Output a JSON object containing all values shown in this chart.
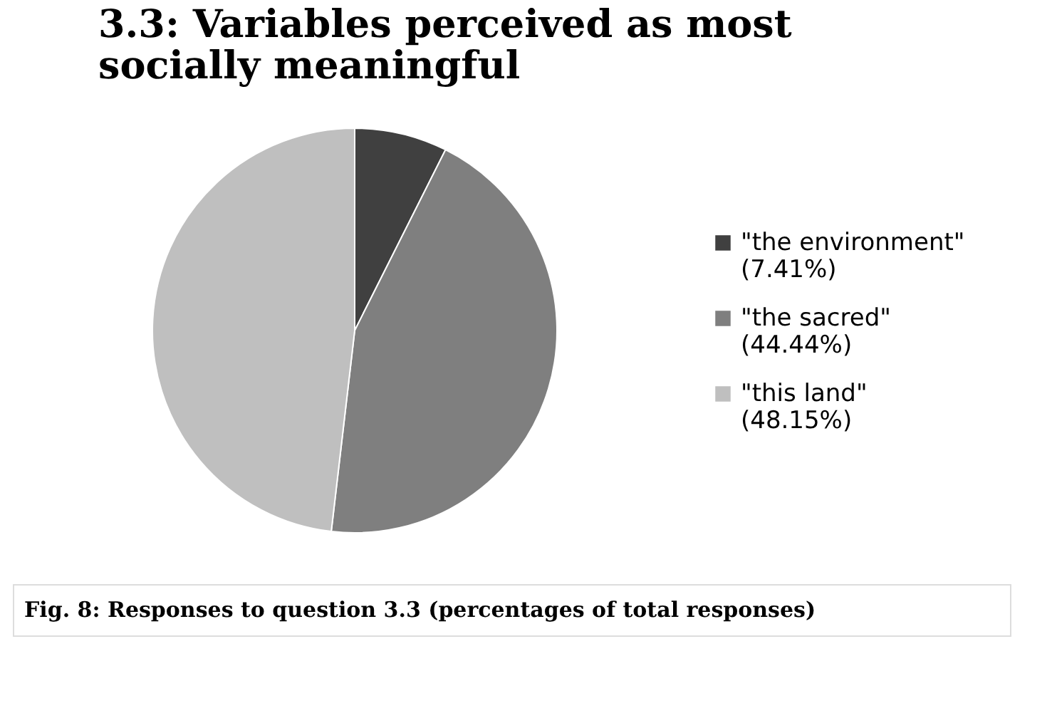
{
  "chart_data": {
    "type": "pie",
    "title": "3.3: Variables perceived as most socially meaningful",
    "categories": [
      "\"the environment\" (7.41%)",
      "\"the sacred\" (44.44%)",
      "\"this land\" (48.15%)"
    ],
    "values": [
      7.41,
      44.44,
      48.15
    ],
    "colors": [
      "#404040",
      "#7f7f7f",
      "#bfbfbf"
    ],
    "legend": "right",
    "annotations": [
      "Fig. 8: Responses to question 3.3 (percentages of total responses)"
    ]
  }
}
